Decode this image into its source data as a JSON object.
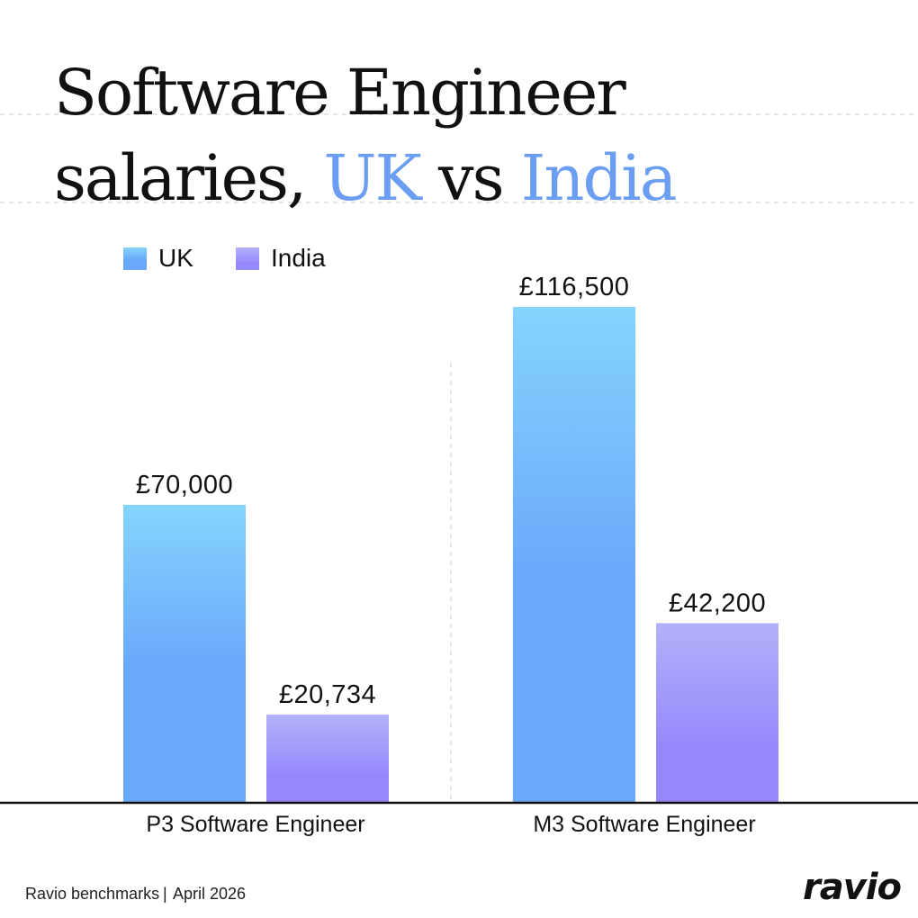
{
  "chart_data": {
    "type": "bar",
    "title_parts": [
      "Software Engineer",
      "salaries, ",
      "UK",
      " vs ",
      "India"
    ],
    "categories": [
      "P3 Software Engineer",
      "M3 Software Engineer"
    ],
    "series": [
      {
        "name": "UK",
        "values": [
          70000,
          116500
        ],
        "labels": [
          "£70,000",
          "£116,500"
        ],
        "color": "#6aaefb"
      },
      {
        "name": "India",
        "values": [
          20734,
          42200
        ],
        "labels": [
          "£20,734",
          "£42,200"
        ],
        "color": "#9a8ffc"
      }
    ],
    "ylim": [
      0,
      116500
    ],
    "grid": false,
    "legend_position": "top-left"
  },
  "colors": {
    "uk_top": "#85d4fd",
    "uk_bottom": "#6aa8fb",
    "india_top": "#b3b1fa",
    "india_bottom": "#9588fc",
    "accent": "#6b9ef2"
  },
  "footer": {
    "source": "Ravio benchmarks",
    "separator": "|",
    "date": "April 2026",
    "brand": "ravio"
  }
}
